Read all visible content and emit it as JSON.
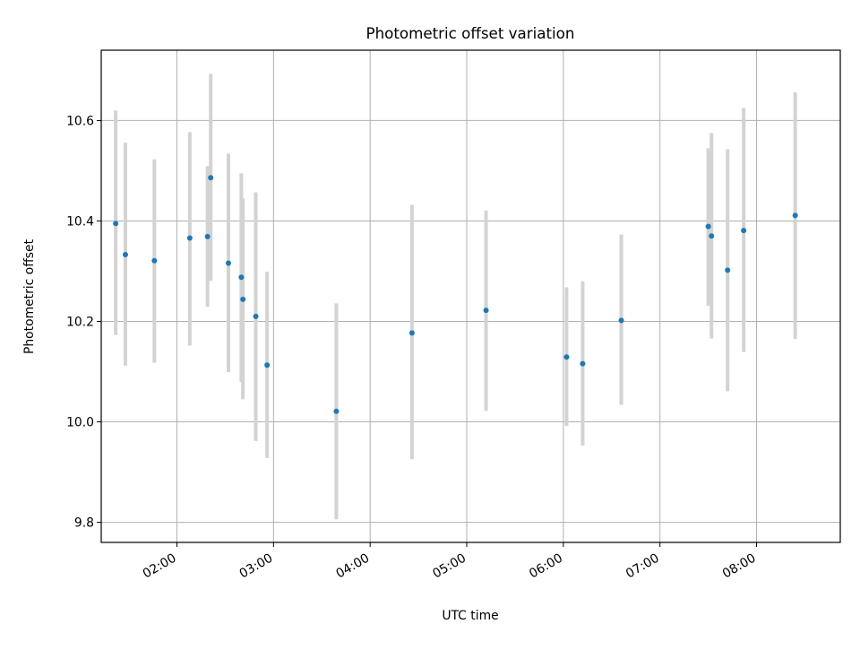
{
  "chart_data": {
    "type": "scatter",
    "title": "Photometric offset variation",
    "xlabel": "UTC time",
    "ylabel": "Photometric offset",
    "x_ticks": [
      "02:00",
      "03:00",
      "04:00",
      "05:00",
      "06:00",
      "07:00",
      "08:00"
    ],
    "y_ticks": [
      "9.8",
      "10.0",
      "10.2",
      "10.4",
      "10.6"
    ],
    "xlim": [
      "01:13",
      "08:52"
    ],
    "ylim": [
      9.76,
      10.74
    ],
    "grid": true,
    "colors": {
      "point": "#1f77b4",
      "errorbar": "#d3d3d3",
      "grid": "#b0b0b0"
    },
    "points": [
      {
        "time": "01:22",
        "y": 10.395,
        "yerr_low": 10.173,
        "yerr_high": 10.62
      },
      {
        "time": "01:28",
        "y": 10.333,
        "yerr_low": 10.112,
        "yerr_high": 10.556
      },
      {
        "time": "01:46",
        "y": 10.321,
        "yerr_low": 10.118,
        "yerr_high": 10.523
      },
      {
        "time": "02:08",
        "y": 10.366,
        "yerr_low": 10.152,
        "yerr_high": 10.577
      },
      {
        "time": "02:19",
        "y": 10.369,
        "yerr_low": 10.229,
        "yerr_high": 10.509
      },
      {
        "time": "02:21",
        "y": 10.486,
        "yerr_low": 10.281,
        "yerr_high": 10.693
      },
      {
        "time": "02:32",
        "y": 10.316,
        "yerr_low": 10.099,
        "yerr_high": 10.534
      },
      {
        "time": "02:40",
        "y": 10.288,
        "yerr_low": 10.079,
        "yerr_high": 10.495
      },
      {
        "time": "02:41",
        "y": 10.244,
        "yerr_low": 10.045,
        "yerr_high": 10.445
      },
      {
        "time": "02:49",
        "y": 10.21,
        "yerr_low": 9.962,
        "yerr_high": 10.457
      },
      {
        "time": "02:56",
        "y": 10.113,
        "yerr_low": 9.928,
        "yerr_high": 10.299
      },
      {
        "time": "03:39",
        "y": 10.021,
        "yerr_low": 9.806,
        "yerr_high": 10.236
      },
      {
        "time": "04:26",
        "y": 10.177,
        "yerr_low": 9.926,
        "yerr_high": 10.432
      },
      {
        "time": "05:12",
        "y": 10.222,
        "yerr_low": 10.022,
        "yerr_high": 10.421
      },
      {
        "time": "06:02",
        "y": 10.129,
        "yerr_low": 9.992,
        "yerr_high": 10.268
      },
      {
        "time": "06:12",
        "y": 10.116,
        "yerr_low": 9.953,
        "yerr_high": 10.28
      },
      {
        "time": "06:36",
        "y": 10.202,
        "yerr_low": 10.034,
        "yerr_high": 10.373
      },
      {
        "time": "07:30",
        "y": 10.389,
        "yerr_low": 10.231,
        "yerr_high": 10.545
      },
      {
        "time": "07:32",
        "y": 10.37,
        "yerr_low": 10.166,
        "yerr_high": 10.575
      },
      {
        "time": "07:42",
        "y": 10.302,
        "yerr_low": 10.061,
        "yerr_high": 10.543
      },
      {
        "time": "07:52",
        "y": 10.381,
        "yerr_low": 10.139,
        "yerr_high": 10.625
      },
      {
        "time": "08:24",
        "y": 10.411,
        "yerr_low": 10.165,
        "yerr_high": 10.656
      }
    ]
  }
}
